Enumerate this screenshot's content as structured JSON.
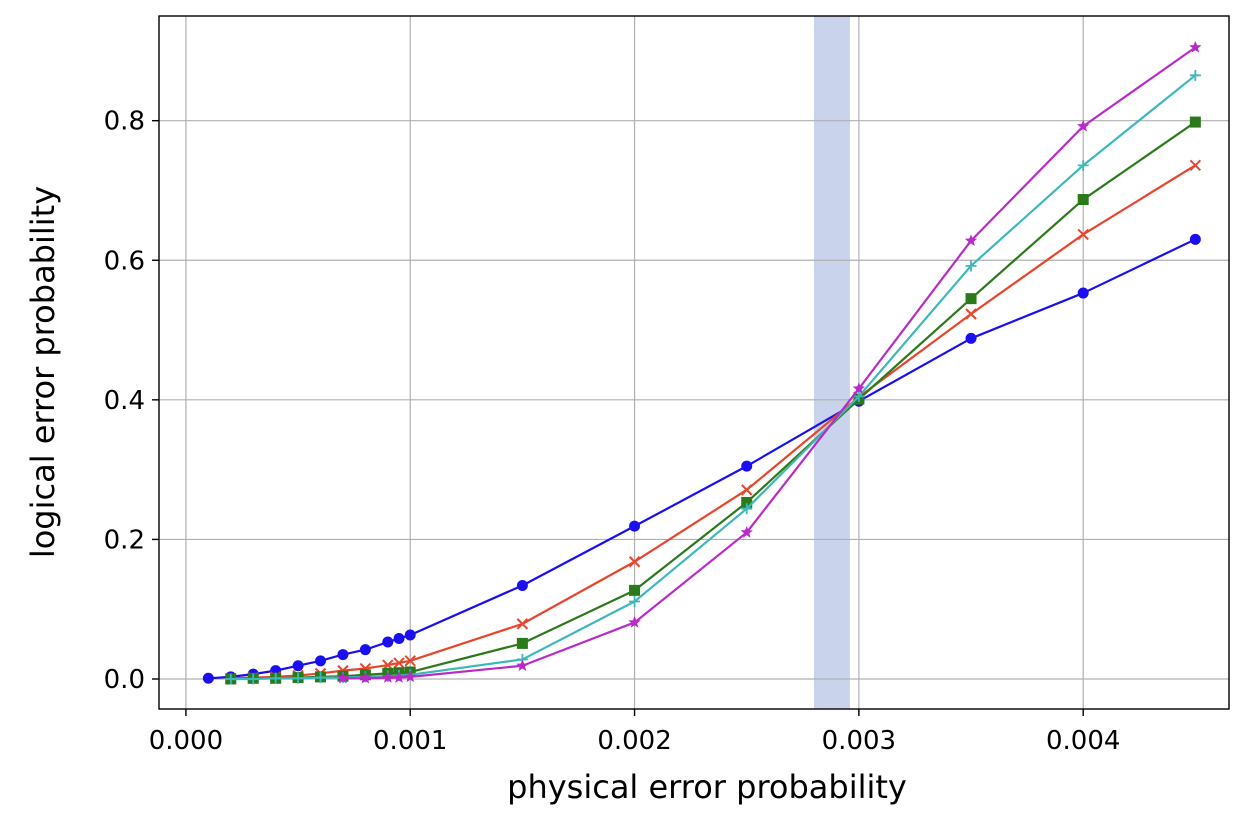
{
  "chart_data": {
    "type": "line",
    "title": "",
    "xlabel": "physical error probability",
    "ylabel": "logical error probability",
    "xlim": [
      -0.00012,
      0.00465
    ],
    "ylim": [
      -0.043,
      0.95
    ],
    "xticks": [
      0.0,
      0.001,
      0.002,
      0.003,
      0.004
    ],
    "xtick_labels": [
      "0.000",
      "0.001",
      "0.002",
      "0.003",
      "0.004"
    ],
    "yticks": [
      0.0,
      0.2,
      0.4,
      0.6,
      0.8
    ],
    "ytick_labels": [
      "0.0",
      "0.2",
      "0.4",
      "0.6",
      "0.8"
    ],
    "grid": true,
    "legend": "none",
    "highlight_band": {
      "x_start": 0.0028,
      "x_end": 0.00296,
      "color": "#c9d3ec"
    },
    "series": [
      {
        "color": "#1a0ff0",
        "marker": "circle",
        "x": [
          0.0001,
          0.0002,
          0.0003,
          0.0004,
          0.0005,
          0.0006,
          0.0007,
          0.0008,
          0.0009,
          0.00095,
          0.001,
          0.0015,
          0.002,
          0.0025,
          0.003,
          0.0035,
          0.004,
          0.0045
        ],
        "y": [
          0.001,
          0.003,
          0.007,
          0.012,
          0.019,
          0.026,
          0.035,
          0.042,
          0.053,
          0.058,
          0.063,
          0.134,
          0.219,
          0.305,
          0.398,
          0.488,
          0.553,
          0.63
        ]
      },
      {
        "color": "#e8452c",
        "marker": "x",
        "x": [
          0.0002,
          0.0003,
          0.0004,
          0.0005,
          0.0006,
          0.0007,
          0.0008,
          0.0009,
          0.00095,
          0.001,
          0.0015,
          0.002,
          0.0025,
          0.003,
          0.0035,
          0.004,
          0.0045
        ],
        "y": [
          0.001,
          0.002,
          0.003,
          0.005,
          0.008,
          0.012,
          0.015,
          0.02,
          0.023,
          0.026,
          0.079,
          0.168,
          0.271,
          0.404,
          0.523,
          0.637,
          0.736
        ]
      },
      {
        "color": "#2a7a1a",
        "marker": "square",
        "x": [
          0.0002,
          0.0003,
          0.0004,
          0.0005,
          0.0006,
          0.0007,
          0.0008,
          0.0009,
          0.00095,
          0.001,
          0.0015,
          0.002,
          0.0025,
          0.003,
          0.0035,
          0.004,
          0.0045
        ],
        "y": [
          0.0,
          0.001,
          0.001,
          0.002,
          0.003,
          0.004,
          0.006,
          0.008,
          0.009,
          0.01,
          0.051,
          0.127,
          0.253,
          0.401,
          0.545,
          0.687,
          0.798
        ]
      },
      {
        "color": "#3cb8bc",
        "marker": "plus",
        "x": [
          0.0002,
          0.0003,
          0.0004,
          0.0005,
          0.0006,
          0.0007,
          0.0008,
          0.0009,
          0.00095,
          0.001,
          0.0015,
          0.002,
          0.0025,
          0.003,
          0.0035,
          0.004,
          0.0045
        ],
        "y": [
          0.0,
          0.0,
          0.001,
          0.001,
          0.002,
          0.002,
          0.003,
          0.004,
          0.005,
          0.006,
          0.028,
          0.111,
          0.244,
          0.405,
          0.592,
          0.736,
          0.865
        ]
      },
      {
        "color": "#b82bc9",
        "marker": "star",
        "x": [
          0.0007,
          0.0008,
          0.0009,
          0.00095,
          0.001,
          0.0015,
          0.002,
          0.0025,
          0.003,
          0.0035,
          0.004,
          0.0045
        ],
        "y": [
          0.001,
          0.001,
          0.002,
          0.002,
          0.003,
          0.019,
          0.081,
          0.21,
          0.416,
          0.628,
          0.792,
          0.905
        ]
      }
    ]
  }
}
